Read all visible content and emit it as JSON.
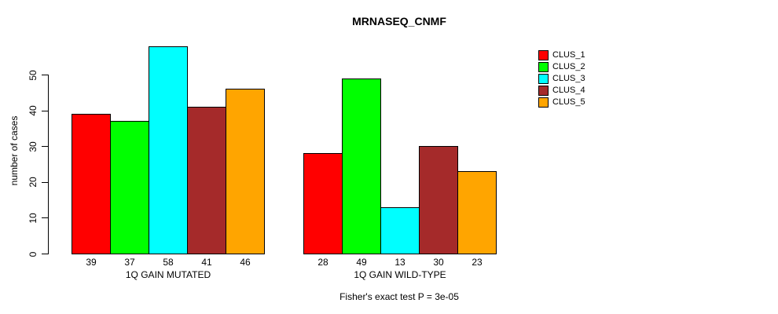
{
  "chart_data": {
    "type": "bar",
    "title": "MRNASEQ_CNMF",
    "ylabel": "number of cases",
    "xlabel": "",
    "categories": [
      "1Q GAIN MUTATED",
      "1Q GAIN WILD-TYPE"
    ],
    "series": [
      {
        "name": "CLUS_1",
        "color": "#FF0000",
        "values": [
          39,
          28
        ]
      },
      {
        "name": "CLUS_2",
        "color": "#00FF00",
        "values": [
          37,
          49
        ]
      },
      {
        "name": "CLUS_3",
        "color": "#00FFFF",
        "values": [
          58,
          13
        ]
      },
      {
        "name": "CLUS_4",
        "color": "#A52A2A",
        "values": [
          41,
          30
        ]
      },
      {
        "name": "CLUS_5",
        "color": "#FFA500",
        "values": [
          46,
          23
        ]
      }
    ],
    "yticks": [
      0,
      10,
      20,
      30,
      40,
      50
    ],
    "ylim": [
      0,
      58
    ],
    "grid": false,
    "bar_value_labels": true,
    "legend_position": "right",
    "annotation": "Fisher's exact test P = 3e-05",
    "axis_color": "#000000",
    "background_color": "#FFFFFF"
  }
}
